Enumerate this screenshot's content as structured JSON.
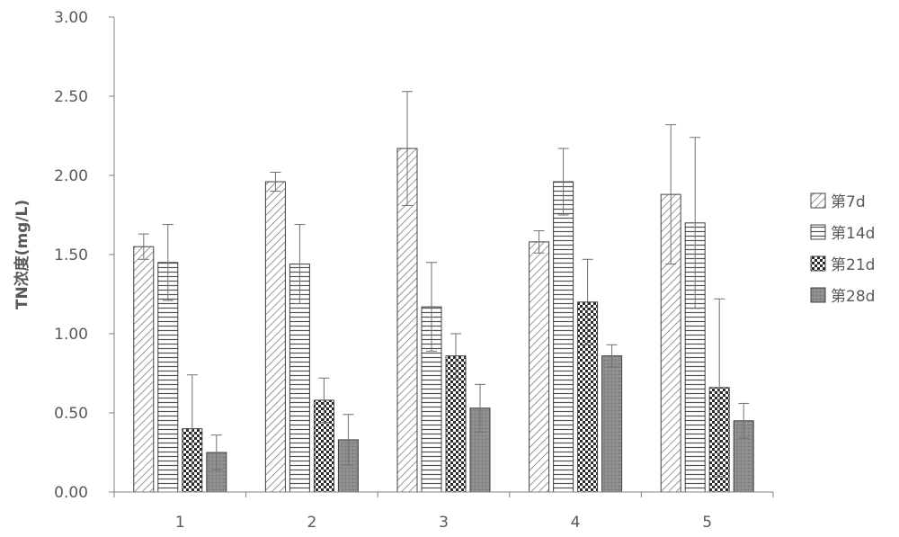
{
  "chart_data": {
    "type": "bar",
    "title": "",
    "xlabel": "",
    "ylabel": "TN浓度(mg/L)",
    "categories": [
      "1",
      "2",
      "3",
      "4",
      "5"
    ],
    "ylim": [
      0,
      3.0
    ],
    "yticks": [
      "0.00",
      "0.50",
      "1.00",
      "1.50",
      "2.00",
      "2.50",
      "3.00"
    ],
    "grid": false,
    "legend_position": "right",
    "error_bars": true,
    "series": [
      {
        "name": "第7d",
        "pattern": "diagonal-hatch",
        "values": [
          1.55,
          1.96,
          2.17,
          1.58,
          1.88
        ],
        "errors": [
          0.08,
          0.06,
          0.36,
          0.07,
          0.44
        ]
      },
      {
        "name": "第14d",
        "pattern": "horizontal-lines",
        "values": [
          1.45,
          1.44,
          1.17,
          1.96,
          1.7
        ],
        "errors": [
          0.24,
          0.25,
          0.28,
          0.21,
          0.54
        ]
      },
      {
        "name": "第21d",
        "pattern": "checkerboard",
        "values": [
          0.4,
          0.58,
          0.86,
          1.2,
          0.66
        ],
        "errors": [
          0.34,
          0.14,
          0.14,
          0.27,
          0.56
        ]
      },
      {
        "name": "第28d",
        "pattern": "dotted-gray",
        "values": [
          0.25,
          0.33,
          0.53,
          0.86,
          0.45
        ],
        "errors": [
          0.11,
          0.16,
          0.15,
          0.07,
          0.11
        ]
      }
    ]
  }
}
